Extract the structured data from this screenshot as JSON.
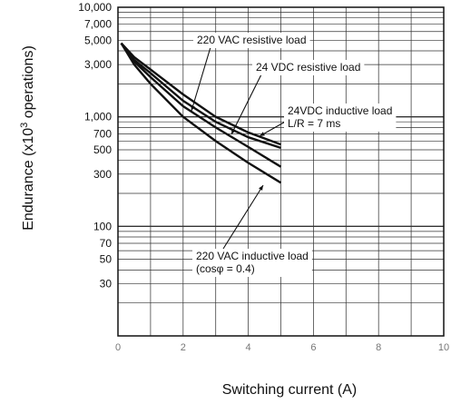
{
  "chart_data": {
    "type": "line",
    "xlabel": "Switching current (A)",
    "ylabel_prefix": "Endurance (x10",
    "ylabel_sup": "3",
    "ylabel_suffix": " operations)",
    "xlim": [
      0,
      10
    ],
    "ylim": [
      10,
      10000
    ],
    "y_scale": "log",
    "grid": true,
    "x_ticks": [
      "0",
      "2",
      "4",
      "6",
      "8",
      "10"
    ],
    "y_tick_labels": [
      {
        "value": 10000,
        "label": "10,000"
      },
      {
        "value": 7000,
        "label": "7,000"
      },
      {
        "value": 5000,
        "label": "5,000"
      },
      {
        "value": 3000,
        "label": "3,000"
      },
      {
        "value": 1000,
        "label": "1,000"
      },
      {
        "value": 700,
        "label": "700"
      },
      {
        "value": 500,
        "label": "500"
      },
      {
        "value": 300,
        "label": "300"
      },
      {
        "value": 100,
        "label": "100"
      },
      {
        "value": 70,
        "label": "70"
      },
      {
        "value": 50,
        "label": "50"
      },
      {
        "value": 30,
        "label": "30"
      }
    ],
    "series": [
      {
        "name": "220 VAC resistive load",
        "x": [
          0.1,
          0.5,
          1,
          2,
          3,
          4,
          5
        ],
        "y": [
          4700,
          3500,
          2700,
          1600,
          1000,
          720,
          560
        ]
      },
      {
        "name": "24 VDC resistive load",
        "x": [
          0.1,
          0.5,
          1,
          2,
          3,
          4,
          5
        ],
        "y": [
          4700,
          3300,
          2500,
          1400,
          900,
          650,
          520
        ]
      },
      {
        "name": "24VDC inductive load L/R = 7 ms",
        "x": [
          0.1,
          0.5,
          1,
          2,
          3,
          4,
          5
        ],
        "y": [
          4700,
          3200,
          2300,
          1250,
          800,
          530,
          350
        ]
      },
      {
        "name": "220 VAC inductive load (cosφ = 0.4)",
        "x": [
          0.1,
          0.5,
          1,
          2,
          3,
          4,
          5
        ],
        "y": [
          4700,
          3000,
          2000,
          1000,
          600,
          380,
          250
        ]
      }
    ],
    "annotations": [
      {
        "lines": [
          "220 VAC resistive load"
        ]
      },
      {
        "lines": [
          "24 VDC resistive load"
        ]
      },
      {
        "lines": [
          "24VDC inductive load",
          "L/R = 7 ms"
        ]
      },
      {
        "lines": [
          "220 VAC inductive load",
          "(cosφ = 0.4)"
        ]
      }
    ]
  }
}
